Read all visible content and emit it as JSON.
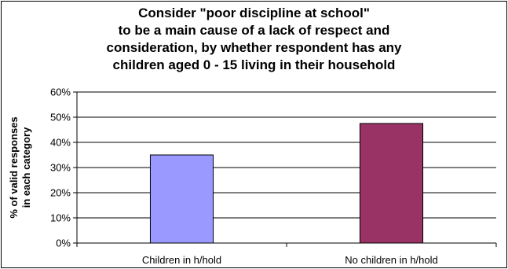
{
  "chart_data": {
    "type": "bar",
    "title_lines": [
      "Consider \"poor discipline at school\"",
      "to be a main cause of a lack of respect and",
      "consideration, by whether respondent has any",
      "children aged 0 - 15 living in their household"
    ],
    "categories": [
      "Children in h/hold",
      "No children in h/hold"
    ],
    "values": [
      35,
      47.5
    ],
    "bar_colors": [
      "#9999FF",
      "#993366"
    ],
    "ylabel_lines": [
      "% of valid responses",
      "in each category"
    ],
    "yticks": [
      "0%",
      "10%",
      "20%",
      "30%",
      "40%",
      "50%",
      "60%"
    ],
    "ylim": [
      0,
      60
    ],
    "grid": true
  }
}
